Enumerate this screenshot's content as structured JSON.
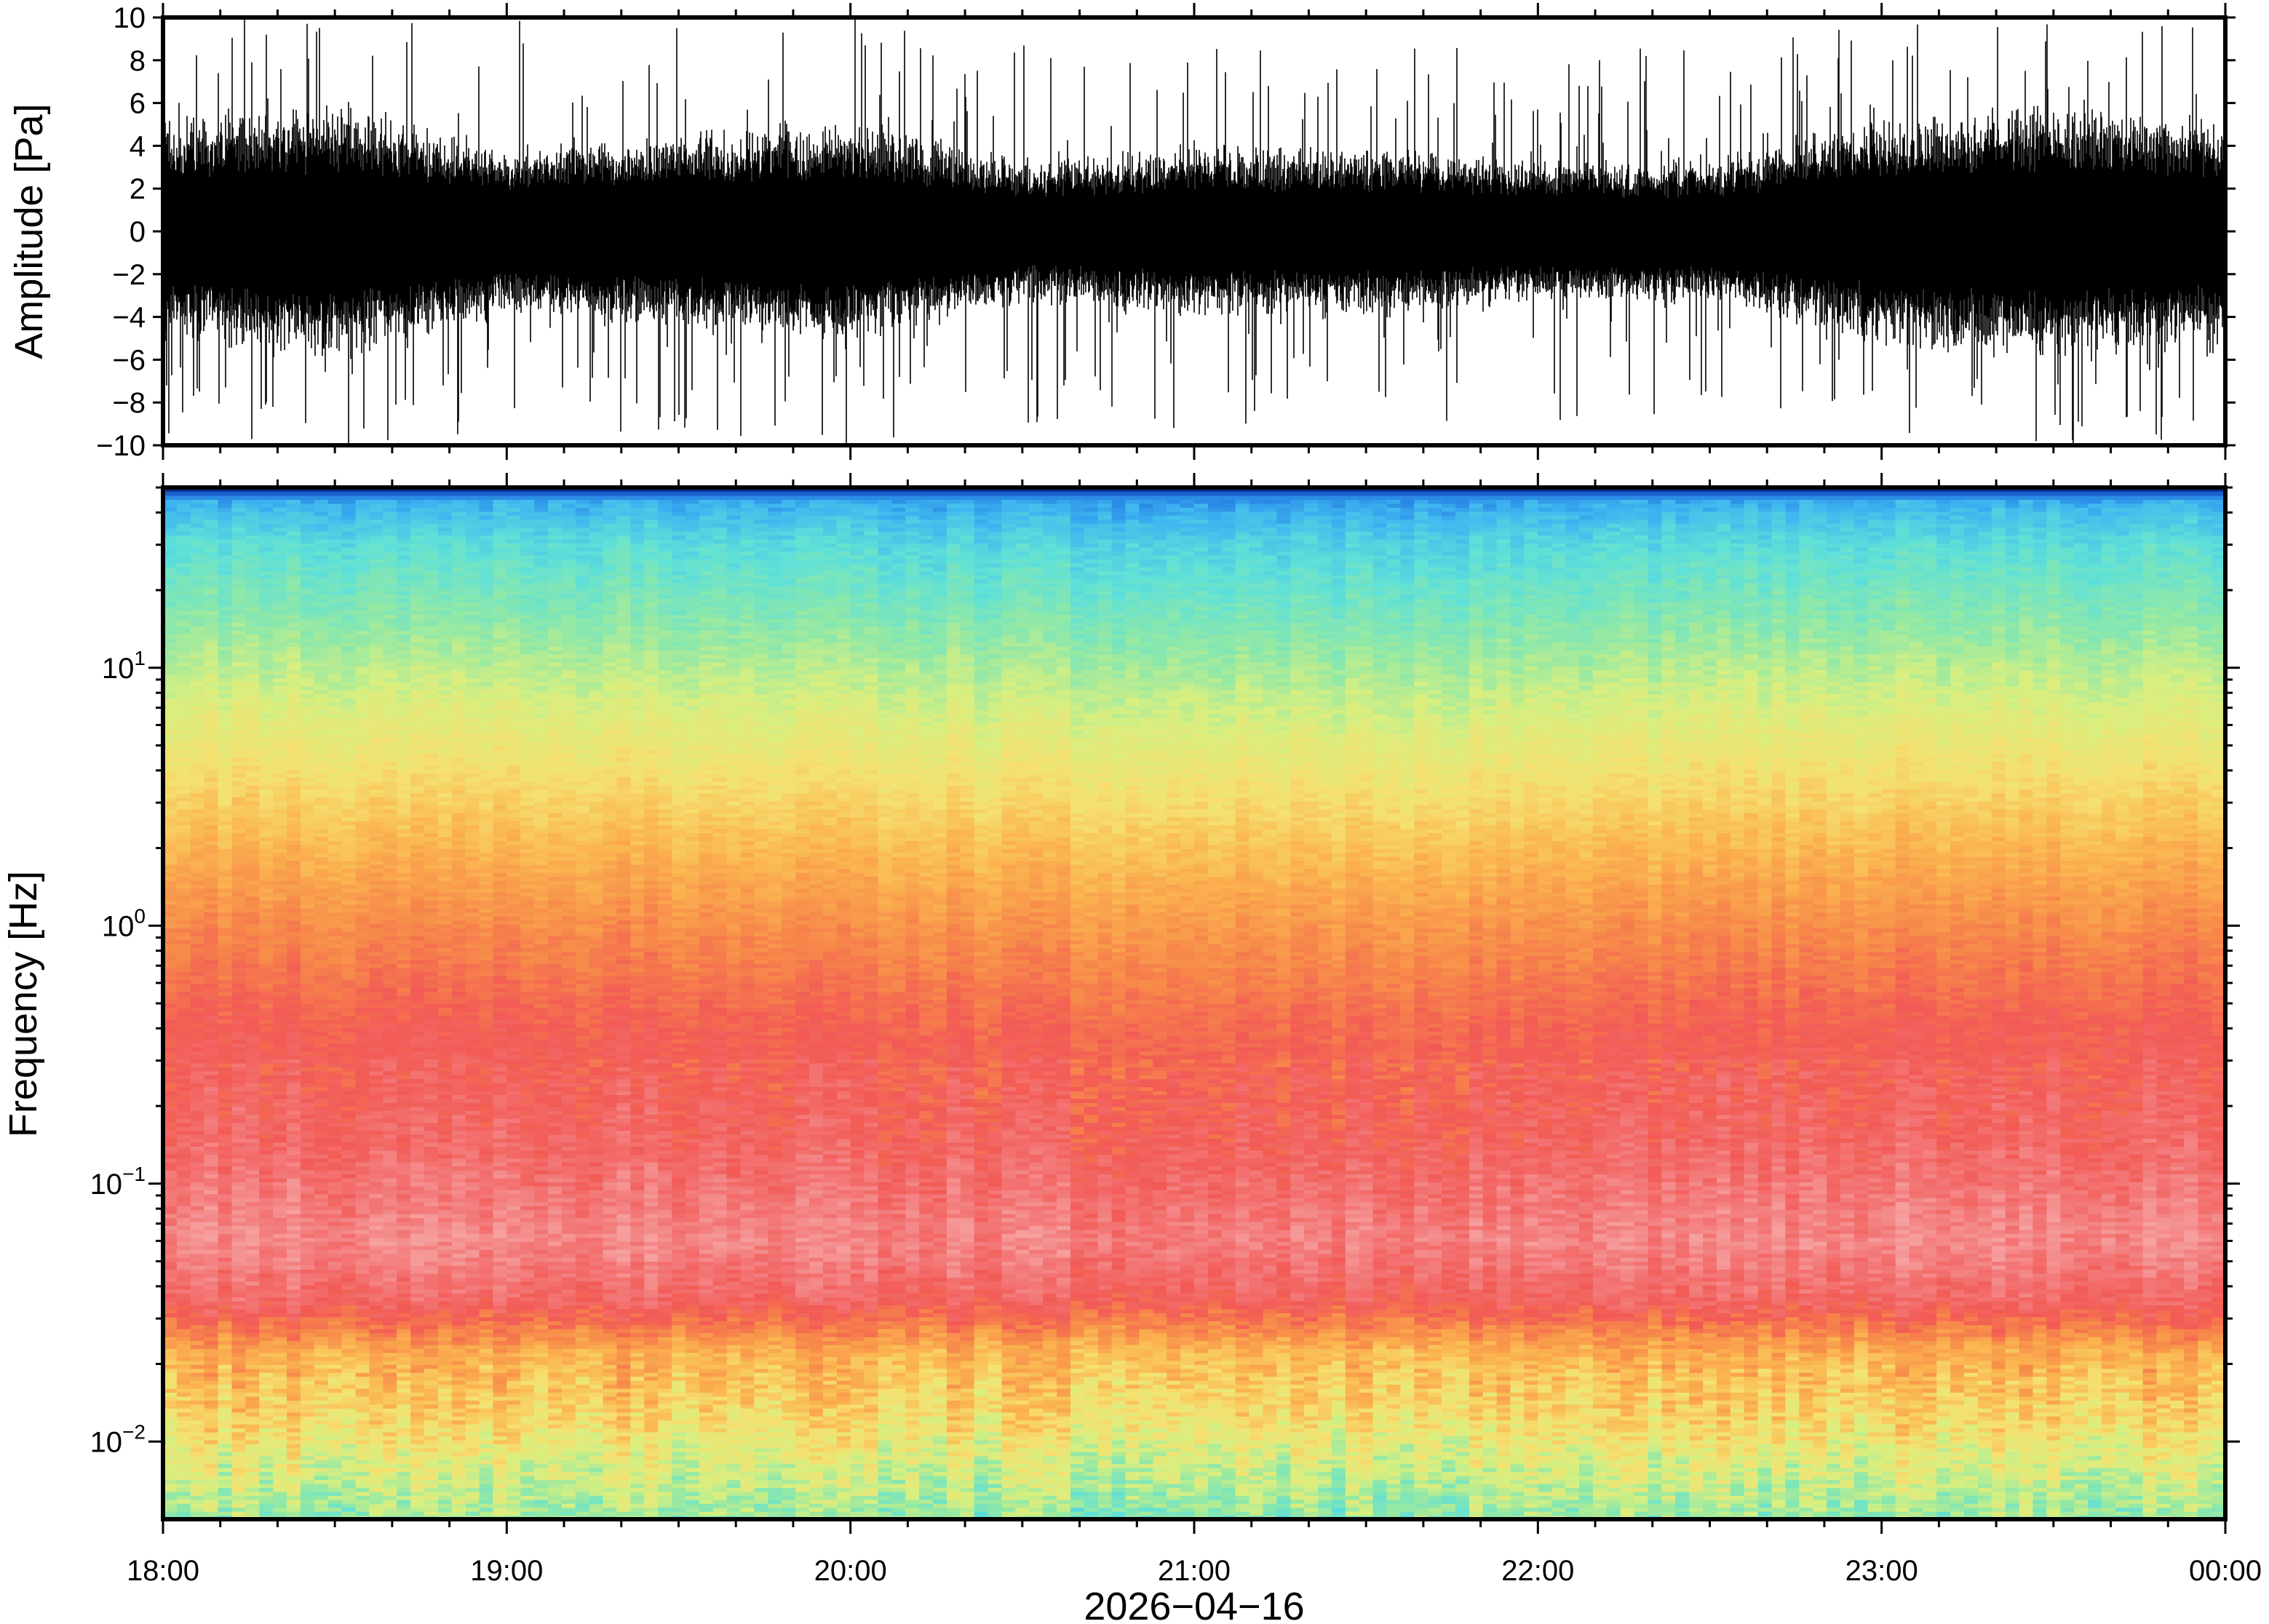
{
  "chart_data": [
    {
      "type": "line",
      "ylabel": "Amplitude [Pa]",
      "ylim": [
        -10,
        10
      ],
      "yticks": [
        "10",
        "8",
        "6",
        "4",
        "2",
        "0",
        "−2",
        "−4",
        "−6",
        "−8",
        "−10"
      ],
      "xlim": [
        "2026-04-16 18:00",
        "2026-04-17 00:00"
      ],
      "grid": false,
      "envelope": {
        "x_hours": [
          18.0,
          18.5,
          19.0,
          19.5,
          20.0,
          20.5,
          21.0,
          21.5,
          22.0,
          22.5,
          23.0,
          23.5,
          24.0
        ],
        "dense_amplitude": [
          4.0,
          4.5,
          3.0,
          3.5,
          4.0,
          2.5,
          3.0,
          3.0,
          2.5,
          2.5,
          4.0,
          4.5,
          4.0
        ],
        "peak_amplitude": [
          10,
          10,
          10,
          9.5,
          10,
          9,
          9.5,
          9,
          9,
          8.5,
          10,
          10,
          10
        ]
      }
    },
    {
      "type": "heatmap",
      "ylabel": "Frequency [Hz]",
      "yscale": "log",
      "ylim": [
        0.005,
        50
      ],
      "yticks": [
        {
          "value": 10,
          "base": "10",
          "exp": "1"
        },
        {
          "value": 1,
          "base": "10",
          "exp": "0"
        },
        {
          "value": 0.1,
          "base": "10",
          "exp": "−1"
        },
        {
          "value": 0.01,
          "base": "10",
          "exp": "−2"
        }
      ],
      "xlabel": "2026−04−16",
      "xticks": [
        "18:00",
        "19:00",
        "20:00",
        "21:00",
        "22:00",
        "23:00",
        "00:00"
      ],
      "xlim": [
        "2026-04-16 18:00",
        "2026-04-17 00:00"
      ],
      "colormap": [
        "#0a1a7a",
        "#1e6fe0",
        "#3fb7f0",
        "#5fe0d8",
        "#8fe8a8",
        "#d8ef80",
        "#f5e070",
        "#fbb450",
        "#f78a4a",
        "#f25a55",
        "#f37878",
        "#f6a0a0"
      ],
      "profile_frequency_hz": [
        50,
        44,
        30,
        15,
        8,
        4,
        2,
        1,
        0.4,
        0.15,
        0.06,
        0.035,
        0.022,
        0.012,
        0.008,
        0.005
      ],
      "profile_color_index": [
        0,
        2,
        3,
        4,
        5,
        6,
        7,
        8,
        9,
        9.5,
        10.5,
        9.5,
        7.2,
        6.2,
        5.2,
        4.2
      ]
    }
  ]
}
